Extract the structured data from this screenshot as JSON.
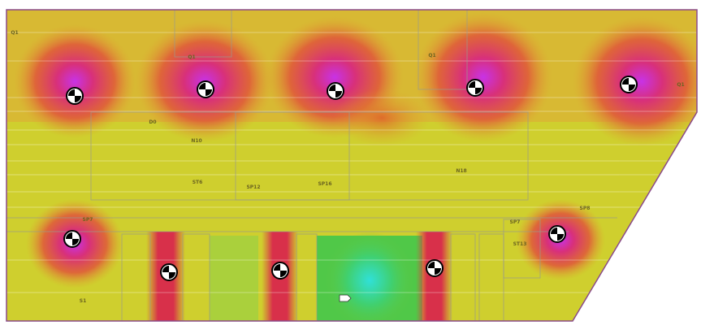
{
  "rooms": [
    {
      "label": "Q1"
    },
    {
      "label": "Q1"
    },
    {
      "label": "Q1"
    },
    {
      "label": "Q1"
    },
    {
      "label": "D0"
    },
    {
      "label": "N10"
    },
    {
      "label": "ST6"
    },
    {
      "label": "SP12"
    },
    {
      "label": "SP16"
    },
    {
      "label": "N18"
    },
    {
      "label": "SP7"
    },
    {
      "label": "SP7"
    },
    {
      "label": "ST13"
    },
    {
      "label": "SP8"
    },
    {
      "label": "S1"
    }
  ]
}
